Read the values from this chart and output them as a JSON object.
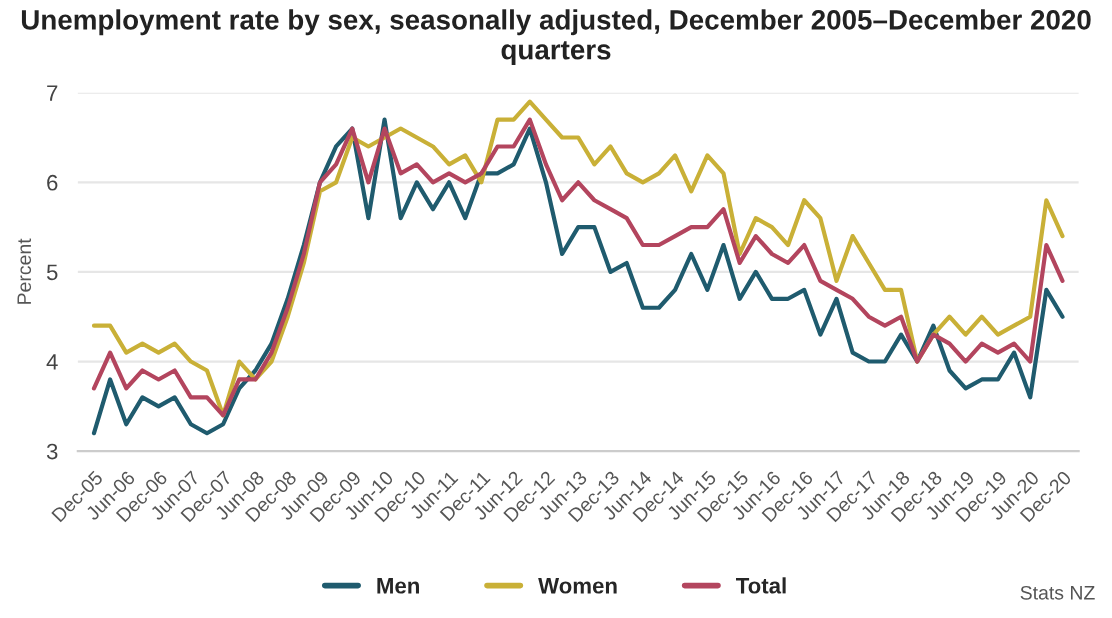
{
  "chart_data": {
    "type": "line",
    "title": "Unemployment rate by sex, seasonally adjusted, December 2005–December 2020 quarters",
    "ylabel": "Percent",
    "categories": [
      "Dec-05",
      null,
      "Jun-06",
      null,
      "Dec-06",
      null,
      "Jun-07",
      null,
      "Dec-07",
      null,
      "Jun-08",
      null,
      "Dec-08",
      null,
      "Jun-09",
      null,
      "Dec-09",
      null,
      "Jun-10",
      null,
      "Dec-10",
      null,
      "Jun-11",
      null,
      "Dec-11",
      null,
      "Jun-12",
      null,
      "Dec-12",
      null,
      "Jun-13",
      null,
      "Dec-13",
      null,
      "Jun-14",
      null,
      "Dec-14",
      null,
      "Jun-15",
      null,
      "Dec-15",
      null,
      "Jun-16",
      null,
      "Dec-16",
      null,
      "Jun-17",
      null,
      "Dec-17",
      null,
      "Jun-18",
      null,
      "Dec-18",
      null,
      "Jun-19",
      null,
      "Dec-19",
      null,
      "Jun-20",
      null,
      "Dec-20"
    ],
    "series": [
      {
        "name": "Men",
        "color": "#1f5b6e",
        "values": [
          3.2,
          3.8,
          3.3,
          3.6,
          3.5,
          3.6,
          3.3,
          3.2,
          3.3,
          3.7,
          3.9,
          4.2,
          4.7,
          5.3,
          6.0,
          6.4,
          6.6,
          5.6,
          6.7,
          5.6,
          6.0,
          5.7,
          6.0,
          5.6,
          6.1,
          6.1,
          6.2,
          6.6,
          6.0,
          5.2,
          5.5,
          5.5,
          5.0,
          5.1,
          4.6,
          4.6,
          4.8,
          5.2,
          4.8,
          5.3,
          4.7,
          5.0,
          4.7,
          4.7,
          4.8,
          4.3,
          4.7,
          4.1,
          4.0,
          4.0,
          4.3,
          4.0,
          4.4,
          3.9,
          3.7,
          3.8,
          3.8,
          4.1,
          3.6,
          4.8,
          4.5
        ]
      },
      {
        "name": "Women",
        "color": "#c9b037",
        "values": [
          4.4,
          4.4,
          4.1,
          4.2,
          4.1,
          4.2,
          4.0,
          3.9,
          3.4,
          4.0,
          3.8,
          4.0,
          4.5,
          5.1,
          5.9,
          6.0,
          6.5,
          6.4,
          6.5,
          6.6,
          6.5,
          6.4,
          6.2,
          6.3,
          6.0,
          6.7,
          6.7,
          6.9,
          6.7,
          6.5,
          6.5,
          6.2,
          6.4,
          6.1,
          6.0,
          6.1,
          6.3,
          5.9,
          6.3,
          6.1,
          5.2,
          5.6,
          5.5,
          5.3,
          5.8,
          5.6,
          4.9,
          5.4,
          5.1,
          4.8,
          4.8,
          4.0,
          4.3,
          4.5,
          4.3,
          4.5,
          4.3,
          4.4,
          4.5,
          5.8,
          5.4
        ]
      },
      {
        "name": "Total",
        "color": "#b3455e",
        "values": [
          3.7,
          4.1,
          3.7,
          3.9,
          3.8,
          3.9,
          3.6,
          3.6,
          3.4,
          3.8,
          3.8,
          4.1,
          4.6,
          5.2,
          6.0,
          6.2,
          6.6,
          6.0,
          6.6,
          6.1,
          6.2,
          6.0,
          6.1,
          6.0,
          6.1,
          6.4,
          6.4,
          6.7,
          6.2,
          5.8,
          6.0,
          5.8,
          5.7,
          5.6,
          5.3,
          5.3,
          5.4,
          5.5,
          5.5,
          5.7,
          5.1,
          5.4,
          5.2,
          5.1,
          5.3,
          4.9,
          4.8,
          4.7,
          4.5,
          4.4,
          4.5,
          4.0,
          4.3,
          4.2,
          4.0,
          4.2,
          4.1,
          4.2,
          4.0,
          5.3,
          4.9
        ]
      }
    ],
    "ylim": [
      3,
      7
    ],
    "yticks": [
      3,
      4,
      5,
      6,
      7
    ],
    "grid": "y",
    "legend": "bottom",
    "marker": "none",
    "line_style": "solid",
    "annotations": [
      "Stats NZ"
    ]
  }
}
